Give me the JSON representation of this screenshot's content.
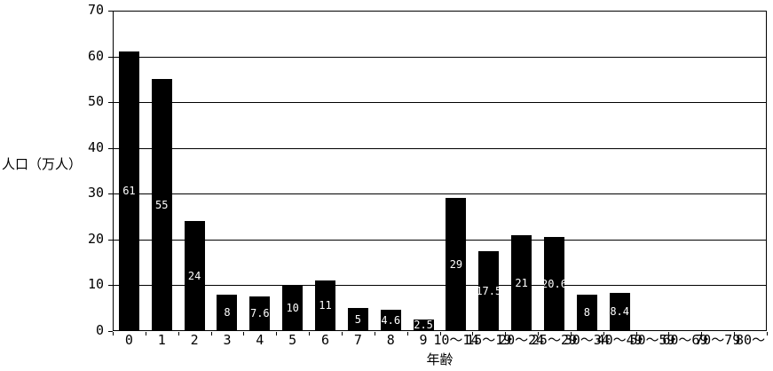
{
  "chart_data": {
    "type": "bar",
    "title": "",
    "xlabel": "年齢",
    "ylabel": "人口（万人）",
    "categories": [
      "0",
      "1",
      "2",
      "3",
      "4",
      "5",
      "6",
      "7",
      "8",
      "9",
      "10～14",
      "15～19",
      "20～24",
      "25～29",
      "30～34",
      "40～49",
      "50～59",
      "60～69",
      "70～79",
      "80～"
    ],
    "values": [
      61,
      55,
      24,
      8,
      7.6,
      10,
      11,
      5,
      4.6,
      2.5,
      29,
      17.5,
      21,
      20.6,
      8,
      8.4,
      0,
      0,
      0,
      0
    ],
    "bar_labels": [
      "61",
      "55",
      "24",
      "8",
      "7.6",
      "10",
      "11",
      "5",
      "4.6",
      "2.5",
      "29",
      "17.5",
      "21",
      "20.6",
      "8",
      "8.4",
      "",
      "",
      "",
      ""
    ],
    "ylim": [
      0,
      70
    ],
    "yticks": [
      0,
      10,
      20,
      30,
      40,
      50,
      60,
      70
    ],
    "grid": true,
    "legend": "none",
    "bar_color": "#000000",
    "bar_label_color": "#ffffff",
    "axis_color": "#000000",
    "background_color": "#ffffff"
  },
  "layout_note": "population by age histogram"
}
